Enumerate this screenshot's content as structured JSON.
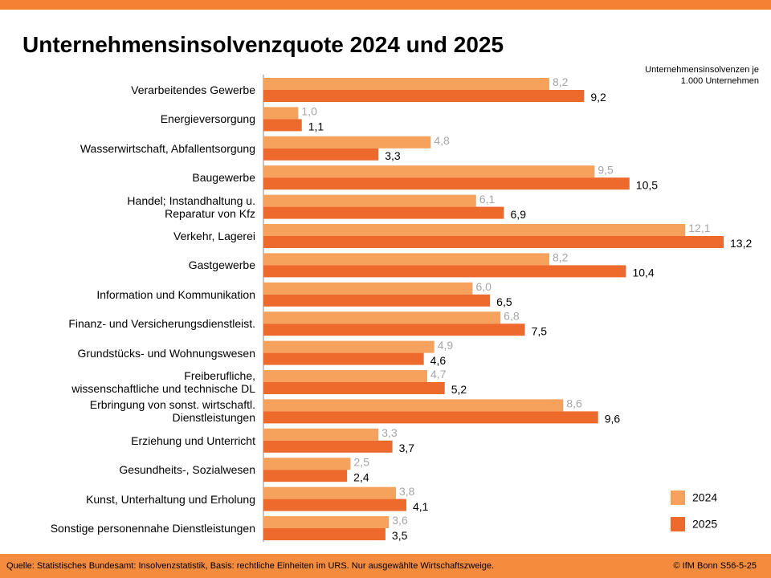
{
  "chart_data": {
    "type": "bar",
    "orientation": "horizontal",
    "title": "Unternehmensinsolvenzquote 2024 und 2025",
    "note": "Unternehmensinsolvenzen je\n1.000 Unternehmen",
    "source": "Quelle: Statistisches Bundesamt: Insolvenzstatistik, Basis: rechtliche Einheiten im URS. Nur ausgewählte Wirtschaftszweige.",
    "credit": "© IfM Bonn  S56-5-25",
    "legend": "bottom-right",
    "categories": [
      "Verarbeitendes Gewerbe",
      "Energieversorgung",
      "Wasserwirtschaft, Abfallentsorgung",
      "Baugewerbe",
      "Handel; Instandhaltung u.\nReparatur von Kfz",
      "Verkehr, Lagerei",
      "Gastgewerbe",
      "Information und Kommunikation",
      "Finanz- und Versicherungsdienstleist.",
      "Grundstücks- und Wohnungswesen",
      "Freiberufliche,\nwissenschaftliche und technische DL",
      "Erbringung von sonst. wirtschaftl.\nDienstleistungen",
      "Erziehung und Unterricht",
      "Gesundheits-, Sozialwesen",
      "Kunst, Unterhaltung und Erholung",
      "Sonstige personennahe Dienstleistungen"
    ],
    "series": [
      {
        "name": "2024",
        "color": "#f6a25c",
        "label_color": "#a6a6a6",
        "values": [
          8.2,
          1.0,
          4.8,
          9.5,
          6.1,
          12.1,
          8.2,
          6.0,
          6.8,
          4.9,
          4.7,
          8.6,
          3.3,
          2.5,
          3.8,
          3.6
        ],
        "value_labels": [
          "8,2",
          "1,0",
          "4,8",
          "9,5",
          "6,1",
          "12,1",
          "8,2",
          "6,0",
          "6,8",
          "4,9",
          "4,7",
          "8,6",
          "3,3",
          "2,5",
          "3,8",
          "3,6"
        ]
      },
      {
        "name": "2025",
        "color": "#ee6a2c",
        "label_color": "#000000",
        "values": [
          9.2,
          1.1,
          3.3,
          10.5,
          6.9,
          13.2,
          10.4,
          6.5,
          7.5,
          4.6,
          5.2,
          9.6,
          3.7,
          2.4,
          4.1,
          3.5
        ],
        "value_labels": [
          "9,2",
          "1,1",
          "3,3",
          "10,5",
          "6,9",
          "13,2",
          "10,4",
          "6,5",
          "7,5",
          "4,6",
          "5,2",
          "9,6",
          "3,7",
          "2,4",
          "4,1",
          "3,5"
        ]
      }
    ]
  }
}
